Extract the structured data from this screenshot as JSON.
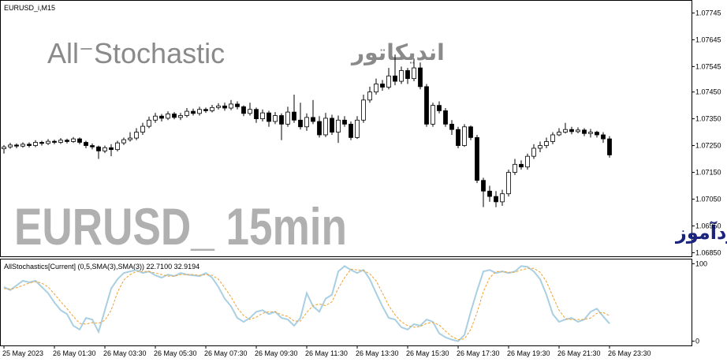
{
  "header": "EURUSD_i,M15",
  "overlay": {
    "title_en": "All⁻Stochastic",
    "title_fa": "اندیکاتور",
    "symbol": "EURUSD_ 15min",
    "site": "انتشار در سایت سودآموز"
  },
  "chart_data": [
    {
      "type": "candlestick",
      "categories": [
        "25 May 2023",
        null,
        null,
        null,
        null,
        null,
        null,
        null,
        "26 May 01:30",
        null,
        null,
        null,
        null,
        null,
        null,
        null,
        "26 May 03:30",
        null,
        null,
        null,
        null,
        null,
        null,
        null,
        "26 May 05:30",
        null,
        null,
        null,
        null,
        null,
        null,
        null,
        "26 May 07:30",
        null,
        null,
        null,
        null,
        null,
        null,
        null,
        "26 May 09:30",
        null,
        null,
        null,
        null,
        null,
        null,
        null,
        "26 May 11:30",
        null,
        null,
        null,
        null,
        null,
        null,
        null,
        "26 May 13:30",
        null,
        null,
        null,
        null,
        null,
        null,
        null,
        "26 May 15:30",
        null,
        null,
        null,
        null,
        null,
        null,
        null,
        "26 May 17:30",
        null,
        null,
        null,
        null,
        null,
        null,
        null,
        "26 May 19:30",
        null,
        null,
        null,
        null,
        null,
        null,
        null,
        "26 May 21:30",
        null,
        null,
        null,
        null,
        null,
        null,
        null,
        "26 May 23:30"
      ],
      "open": [
        1.07238,
        1.07245,
        1.07252,
        1.07248,
        1.07255,
        1.0725,
        1.07262,
        1.07258,
        1.07266,
        1.07262,
        1.0727,
        1.07265,
        1.07275,
        1.07262,
        1.0725,
        1.07245,
        1.0723,
        1.07242,
        1.07235,
        1.0726,
        1.07272,
        1.07278,
        1.073,
        1.07322,
        1.07345,
        1.0736,
        1.07352,
        1.07368,
        1.07355,
        1.07362,
        1.07378,
        1.0737,
        1.07385,
        1.0738,
        1.07392,
        1.07398,
        1.0739,
        1.07405,
        1.07395,
        1.0737,
        1.07385,
        1.0735,
        1.07372,
        1.0734,
        1.07362,
        1.0733,
        1.07375,
        1.07345,
        1.0732,
        1.07355,
        1.0734,
        1.0729,
        1.07352,
        1.073,
        1.07345,
        1.0733,
        1.0728,
        1.07345,
        1.0742,
        1.0745,
        1.0748,
        1.07468,
        1.0751,
        1.0749,
        1.0753,
        1.075,
        1.0754,
        1.0747,
        1.0733,
        1.074,
        1.0738,
        1.0733,
        1.0731,
        1.0725,
        1.0732,
        1.0728,
        1.0712,
        1.0708,
        1.0706,
        1.0704,
        1.0707,
        1.0715,
        1.0718,
        1.0717,
        1.0721,
        1.0724,
        1.0725,
        1.07265,
        1.0729,
        1.073,
        1.0731,
        1.07302,
        1.07308,
        1.07295,
        1.073,
        1.0729,
        1.07275
      ],
      "high": [
        1.07252,
        1.0726,
        1.07258,
        1.07262,
        1.07262,
        1.0727,
        1.07268,
        1.07274,
        1.07272,
        1.07278,
        1.07276,
        1.07282,
        1.0728,
        1.07268,
        1.07258,
        1.0725,
        1.0725,
        1.07255,
        1.07268,
        1.0728,
        1.073,
        1.07315,
        1.07335,
        1.07358,
        1.07372,
        1.07368,
        1.07378,
        1.07375,
        1.07372,
        1.0739,
        1.07388,
        1.07395,
        1.07392,
        1.07402,
        1.07408,
        1.0741,
        1.0742,
        1.07415,
        1.074,
        1.0741,
        1.07392,
        1.07385,
        1.0738,
        1.07375,
        1.0737,
        1.07395,
        1.0744,
        1.0741,
        1.0737,
        1.0742,
        1.0736,
        1.07372,
        1.07365,
        1.07362,
        1.0736,
        1.0734,
        1.0736,
        1.0744,
        1.0747,
        1.075,
        1.07495,
        1.0754,
        1.0759,
        1.07545,
        1.0754,
        1.07575,
        1.0756,
        1.0748,
        1.0741,
        1.07415,
        1.0739,
        1.07345,
        1.0732,
        1.0733,
        1.07325,
        1.0729,
        1.0713,
        1.071,
        1.0708,
        1.07085,
        1.0716,
        1.072,
        1.07195,
        1.0722,
        1.07255,
        1.07265,
        1.0728,
        1.073,
        1.07315,
        1.07335,
        1.0732,
        1.07318,
        1.07315,
        1.07312,
        1.07305,
        1.073,
        1.07285
      ],
      "low": [
        1.0722,
        1.07238,
        1.0724,
        1.07242,
        1.07243,
        1.07244,
        1.0725,
        1.07252,
        1.07255,
        1.07256,
        1.07258,
        1.0726,
        1.07255,
        1.0724,
        1.07236,
        1.072,
        1.07222,
        1.0721,
        1.07228,
        1.07252,
        1.07265,
        1.0727,
        1.0729,
        1.07315,
        1.07335,
        1.0734,
        1.07345,
        1.07348,
        1.07345,
        1.07355,
        1.07362,
        1.07362,
        1.07372,
        1.07374,
        1.07385,
        1.0738,
        1.07382,
        1.07385,
        1.0736,
        1.07362,
        1.07335,
        1.0734,
        1.0732,
        1.0733,
        1.0727,
        1.0732,
        1.07335,
        1.0731,
        1.07305,
        1.0733,
        1.0728,
        1.07282,
        1.0729,
        1.0726,
        1.0732,
        1.0727,
        1.07275,
        1.07335,
        1.0741,
        1.0744,
        1.07455,
        1.0746,
        1.07475,
        1.0748,
        1.0748,
        1.0749,
        1.0746,
        1.0732,
        1.0732,
        1.0737,
        1.0732,
        1.0729,
        1.0724,
        1.07245,
        1.0727,
        1.0711,
        1.0702,
        1.0704,
        1.0702,
        1.07025,
        1.0706,
        1.0714,
        1.0716,
        1.0716,
        1.072,
        1.07225,
        1.0724,
        1.07255,
        1.07285,
        1.07295,
        1.07292,
        1.07296,
        1.07285,
        1.0728,
        1.0728,
        1.0726,
        1.07205
      ],
      "close": [
        1.07245,
        1.07252,
        1.07248,
        1.07255,
        1.0725,
        1.07262,
        1.07258,
        1.07266,
        1.07262,
        1.0727,
        1.07265,
        1.07275,
        1.07262,
        1.0725,
        1.07245,
        1.0723,
        1.07242,
        1.07235,
        1.0726,
        1.07272,
        1.07278,
        1.073,
        1.07322,
        1.07345,
        1.0736,
        1.07352,
        1.07368,
        1.07355,
        1.07362,
        1.07378,
        1.0737,
        1.07385,
        1.0738,
        1.07392,
        1.07398,
        1.0739,
        1.07405,
        1.07395,
        1.0737,
        1.07385,
        1.0735,
        1.07372,
        1.0734,
        1.07362,
        1.0733,
        1.07375,
        1.07345,
        1.0732,
        1.07355,
        1.0734,
        1.0729,
        1.07352,
        1.073,
        1.07345,
        1.0733,
        1.0728,
        1.07345,
        1.0742,
        1.0745,
        1.0748,
        1.07468,
        1.0751,
        1.0749,
        1.0753,
        1.075,
        1.0754,
        1.0747,
        1.0733,
        1.074,
        1.0738,
        1.0733,
        1.0731,
        1.0725,
        1.0732,
        1.0728,
        1.0712,
        1.0708,
        1.0706,
        1.0704,
        1.0707,
        1.0715,
        1.0718,
        1.0717,
        1.0721,
        1.0724,
        1.0725,
        1.07265,
        1.0729,
        1.073,
        1.0731,
        1.07302,
        1.07308,
        1.07295,
        1.073,
        1.0729,
        1.07275,
        1.07215
      ],
      "up_color": "#ffffff",
      "down_color": "#000000",
      "ylim": [
        1.06835,
        1.07792
      ],
      "yticks": [
        {
          "value": 1.07745,
          "label": "1.07745"
        },
        {
          "value": 1.07645,
          "label": "1.07645"
        },
        {
          "value": 1.07545,
          "label": "1.07545"
        },
        {
          "value": 1.0745,
          "label": "1.07450"
        },
        {
          "value": 1.0735,
          "label": "1.07350"
        },
        {
          "value": 1.0725,
          "label": "1.07250"
        },
        {
          "value": 1.0715,
          "label": "1.07150"
        },
        {
          "value": 1.0705,
          "label": "1.07050"
        },
        {
          "value": 1.0695,
          "label": "1.06950"
        },
        {
          "value": 1.0685,
          "label": "1.06850"
        }
      ]
    },
    {
      "type": "line",
      "title": "AllStochastics[Current] (0,5,SMA(3),SMA(3)) 22.7100 32.9194",
      "series": [
        {
          "color": "#a9cfe3",
          "dashed": false,
          "values": [
            70,
            66,
            72,
            78,
            76,
            78,
            70,
            62,
            50,
            40,
            35,
            20,
            15,
            30,
            28,
            12,
            40,
            68,
            80,
            88,
            90,
            92,
            88,
            90,
            85,
            82,
            86,
            84,
            88,
            86,
            85,
            84,
            88,
            82,
            70,
            55,
            45,
            30,
            25,
            30,
            38,
            40,
            35,
            38,
            30,
            28,
            20,
            30,
            62,
            45,
            38,
            55,
            60,
            90,
            97,
            92,
            88,
            92,
            80,
            62,
            45,
            30,
            28,
            18,
            15,
            22,
            20,
            28,
            25,
            10,
            5,
            2,
            0,
            8,
            38,
            65,
            90,
            92,
            88,
            90,
            88,
            90,
            97,
            96,
            90,
            80,
            60,
            35,
            25,
            28,
            30,
            25,
            28,
            38,
            42,
            32,
            22.71
          ]
        },
        {
          "color": "#f0a030",
          "dashed": true,
          "values": [
            68,
            67,
            69,
            72,
            75,
            77,
            75,
            70,
            61,
            51,
            42,
            32,
            23,
            22,
            24,
            23,
            27,
            40,
            63,
            79,
            86,
            90,
            90,
            90,
            88,
            86,
            84,
            84,
            86,
            86,
            86,
            85,
            86,
            85,
            80,
            69,
            57,
            43,
            33,
            28,
            31,
            36,
            38,
            38,
            34,
            32,
            26,
            26,
            37,
            46,
            48,
            46,
            51,
            68,
            82,
            93,
            92,
            91,
            87,
            78,
            62,
            46,
            34,
            25,
            20,
            18,
            19,
            23,
            24,
            21,
            13,
            6,
            2,
            3,
            15,
            37,
            64,
            82,
            90,
            90,
            89,
            89,
            92,
            94,
            94,
            89,
            77,
            58,
            40,
            29,
            28,
            28,
            28,
            30,
            36,
            37,
            32.9194
          ]
        }
      ],
      "ylim": [
        -6,
        106
      ],
      "yticks": [
        0,
        100
      ]
    }
  ]
}
